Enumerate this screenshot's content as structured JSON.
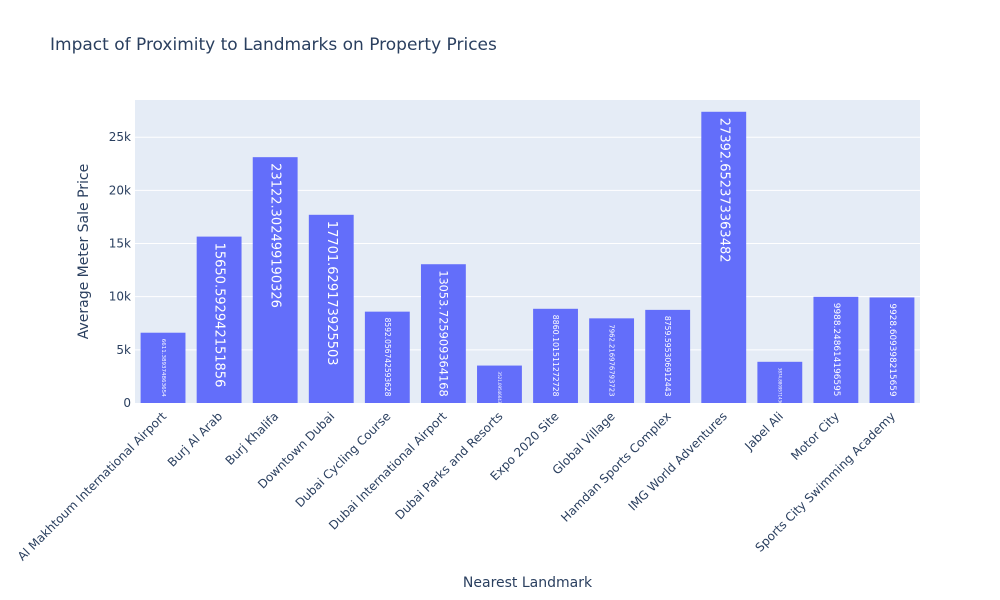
{
  "chart_data": {
    "type": "bar",
    "title": "Impact of Proximity to Landmarks on Property Prices",
    "xlabel": "Nearest Landmark",
    "ylabel": "Average Meter Sale Price",
    "ylim": [
      0,
      28500
    ],
    "yticks": [
      0,
      5000,
      10000,
      15000,
      20000,
      25000
    ],
    "ytick_labels": [
      "0",
      "5k",
      "10k",
      "15k",
      "20k",
      "25k"
    ],
    "grid": true,
    "colors": {
      "bar": "#636efa",
      "plot_bg": "#e5ecf6",
      "grid": "#ffffff",
      "text": "#2a3f5f",
      "label": "#ffffff"
    },
    "categories": [
      "Al Makhtoum International Airport",
      "Burj Al Arab",
      "Burj Khalifa",
      "Downtown Dubai",
      "Dubai Cycling Course",
      "Dubai International Airport",
      "Dubai Parks and Resorts",
      "Expo 2020 Site",
      "Global Village",
      "Hamdan Sports Complex",
      "IMG World Adventures",
      "Jabel Ali",
      "Motor City",
      "Sports City Swimming Academy"
    ],
    "values": [
      6611.389374863654,
      15650.592942151856,
      23122.302499190326,
      17701.629173925503,
      8592.056742593628,
      13053.725909364168,
      3521.095466433404,
      8860.101511272727,
      7962.216976793723,
      8759.595306912443,
      27392.652373363482,
      3874.880957143667,
      9988.248614196595,
      9928.60939821566
    ],
    "value_labels": [
      "6611.389374863654",
      "15650.592942151856",
      "23122.302499190326",
      "17701.629173925503",
      "8592.056742593628",
      "13053.725909364168",
      "3521.095466433404",
      "8860.101511272728",
      "7962.216976793723",
      "8759.595306912443",
      "27392.652373363482",
      "3874.880957143667",
      "9988.248614196595",
      "9928.609398215659"
    ]
  }
}
